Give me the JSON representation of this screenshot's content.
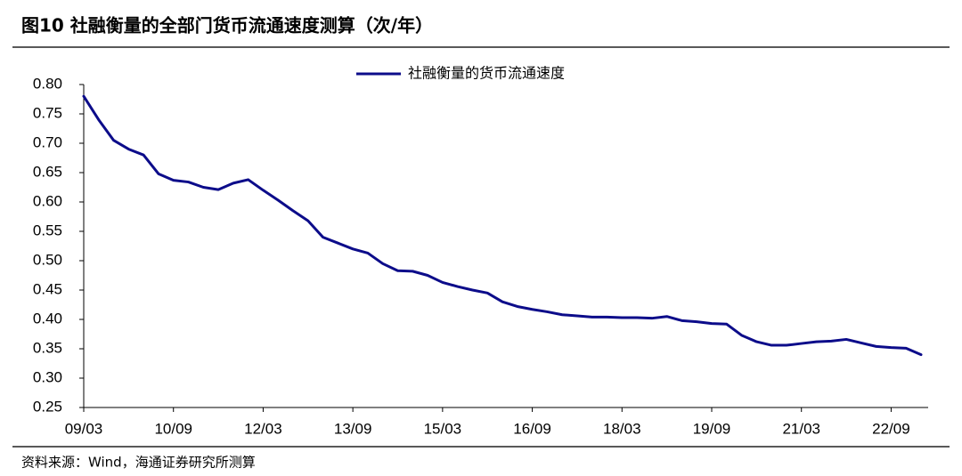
{
  "chart_data": {
    "type": "line",
    "title": "图10 社融衡量的全部门货币流通速度测算（次/年）",
    "source": "资料来源：Wind，海通证券研究所测算",
    "x": [
      "09/03",
      "09/06",
      "09/09",
      "09/12",
      "10/03",
      "10/06",
      "10/09",
      "10/12",
      "11/03",
      "11/06",
      "11/09",
      "11/12",
      "12/03",
      "12/06",
      "12/09",
      "12/12",
      "13/03",
      "13/06",
      "13/09",
      "13/12",
      "14/03",
      "14/06",
      "14/09",
      "14/12",
      "15/03",
      "15/06",
      "15/09",
      "15/12",
      "16/03",
      "16/06",
      "16/09",
      "16/12",
      "17/03",
      "17/06",
      "17/09",
      "17/12",
      "18/03",
      "18/06",
      "18/09",
      "18/12",
      "19/03",
      "19/06",
      "19/09",
      "19/12",
      "20/03",
      "20/06",
      "20/09",
      "20/12",
      "21/03",
      "21/06",
      "21/09",
      "21/12",
      "22/03",
      "22/06",
      "22/09",
      "22/12",
      "23/03"
    ],
    "series": [
      {
        "name": "社融衡量的货币流通速度",
        "color": "#0c0c8a",
        "values": [
          0.78,
          0.74,
          0.705,
          0.69,
          0.68,
          0.648,
          0.637,
          0.634,
          0.625,
          0.621,
          0.632,
          0.638,
          0.62,
          0.603,
          0.585,
          0.568,
          0.54,
          0.53,
          0.52,
          0.513,
          0.495,
          0.483,
          0.482,
          0.475,
          0.463,
          0.456,
          0.45,
          0.445,
          0.43,
          0.422,
          0.417,
          0.413,
          0.408,
          0.406,
          0.404,
          0.404,
          0.403,
          0.403,
          0.402,
          0.405,
          0.398,
          0.396,
          0.393,
          0.392,
          0.373,
          0.362,
          0.356,
          0.356,
          0.359,
          0.362,
          0.363,
          0.366,
          0.36,
          0.354,
          0.352,
          0.351,
          0.34
        ]
      }
    ],
    "xticks": [
      "09/03",
      "10/09",
      "12/03",
      "13/09",
      "15/03",
      "16/09",
      "18/03",
      "19/09",
      "21/03",
      "22/09"
    ],
    "ylim": [
      0.25,
      0.8
    ],
    "yticks": [
      {
        "value": 0.25,
        "label": "0.25"
      },
      {
        "value": 0.3,
        "label": "0.30"
      },
      {
        "value": 0.35,
        "label": "0.35"
      },
      {
        "value": 0.4,
        "label": "0.40"
      },
      {
        "value": 0.45,
        "label": "0.45"
      },
      {
        "value": 0.5,
        "label": "0.50"
      },
      {
        "value": 0.55,
        "label": "0.55"
      },
      {
        "value": 0.6,
        "label": "0.60"
      },
      {
        "value": 0.65,
        "label": "0.65"
      },
      {
        "value": 0.7,
        "label": "0.70"
      },
      {
        "value": 0.75,
        "label": "0.75"
      },
      {
        "value": 0.8,
        "label": "0.80"
      }
    ],
    "legend": "top"
  }
}
